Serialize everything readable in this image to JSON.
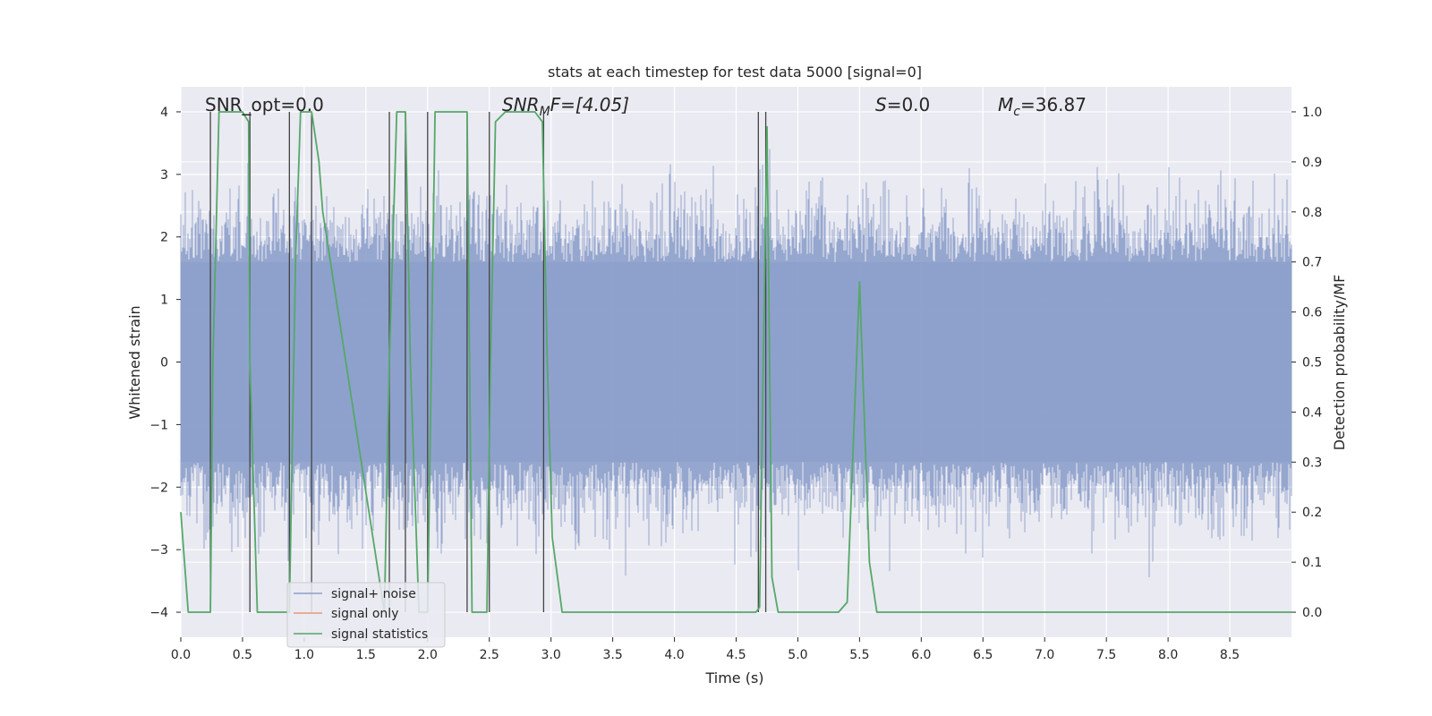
{
  "chart_data": {
    "type": "line",
    "title": "stats at each timestep for test data 5000 [signal=0]",
    "xlabel": "Time (s)",
    "ylabel": "Whitened strain",
    "ylabel_right": "Detection probability/MF",
    "xlim": [
      0.0,
      9.0
    ],
    "ylim": [
      -4.4,
      4.4
    ],
    "ylim_right": [
      -0.05,
      1.05
    ],
    "xticks": [
      "0.0",
      "0.5",
      "1.0",
      "1.5",
      "2.0",
      "2.5",
      "3.0",
      "3.5",
      "4.0",
      "4.5",
      "5.0",
      "5.5",
      "6.0",
      "6.5",
      "7.0",
      "7.5",
      "8.0",
      "8.5"
    ],
    "yticks": [
      "−4",
      "−3",
      "−2",
      "−1",
      "0",
      "1",
      "2",
      "3",
      "4"
    ],
    "yticks_right": [
      "0.0",
      "0.1",
      "0.2",
      "0.3",
      "0.4",
      "0.5",
      "0.6",
      "0.7",
      "0.8",
      "0.9",
      "1.0"
    ],
    "grid": true,
    "annotations": {
      "snr_opt": "SNR_opt=0.0",
      "snr_mf_sym": "SNR",
      "snr_mf_sub": "M",
      "snr_mf_rest": "F=[4.05]",
      "s_sym": "S",
      "s_rest": "=0.0",
      "mc_sym": "M",
      "mc_sub": "c",
      "mc_rest": "=36.87"
    },
    "legend": {
      "location": "lower-left",
      "entries": [
        "signal+ noise",
        "signal only",
        "signal statistics"
      ]
    },
    "colors": {
      "noise": "#8da0cb",
      "signal": "#e8967a",
      "stats": "#55a868",
      "vlines": "#444444",
      "plot_bg": "#eaeaf2",
      "grid": "#ffffff"
    },
    "series": [
      {
        "name": "signal+ noise",
        "axis": "left",
        "description_range": "band approximately -2.5 to 2.5 with spikes",
        "x_range": [
          0.0,
          9.0
        ],
        "band": [
          -1.6,
          1.6
        ]
      },
      {
        "name": "signal only",
        "axis": "left",
        "x": [
          0.0,
          9.0
        ],
        "y": [
          0.0,
          0.0
        ]
      },
      {
        "name": "signal statistics",
        "axis": "right",
        "x": [
          0.0,
          0.06,
          0.24,
          0.26,
          0.31,
          0.5,
          0.55,
          0.56,
          0.62,
          0.7,
          0.88,
          0.93,
          0.97,
          1.06,
          1.12,
          1.15,
          1.65,
          1.69,
          1.75,
          1.82,
          1.86,
          1.93,
          2.0,
          2.06,
          2.32,
          2.36,
          2.48,
          2.51,
          2.55,
          2.63,
          2.87,
          2.93,
          2.97,
          3.01,
          3.09,
          4.66,
          4.69,
          4.72,
          4.75,
          4.79,
          4.84,
          5.33,
          5.4,
          5.5,
          5.58,
          5.64,
          9.0
        ],
        "y": [
          0.2,
          0.0,
          0.0,
          0.5,
          1.0,
          1.0,
          0.98,
          0.5,
          0.0,
          0.0,
          0.0,
          0.7,
          1.0,
          1.0,
          0.9,
          0.8,
          0.0,
          0.5,
          1.0,
          1.0,
          0.5,
          0.0,
          0.0,
          1.0,
          1.0,
          0.0,
          0.0,
          0.5,
          0.98,
          1.0,
          1.0,
          0.98,
          0.5,
          0.15,
          0.0,
          0.0,
          0.01,
          0.5,
          0.97,
          0.07,
          0.0,
          0.0,
          0.02,
          0.66,
          0.1,
          0.0,
          0.0
        ]
      }
    ],
    "vlines_x": [
      0.24,
      0.56,
      0.88,
      1.06,
      1.69,
      1.82,
      2.0,
      2.32,
      2.5,
      2.94,
      4.68,
      4.74
    ]
  }
}
